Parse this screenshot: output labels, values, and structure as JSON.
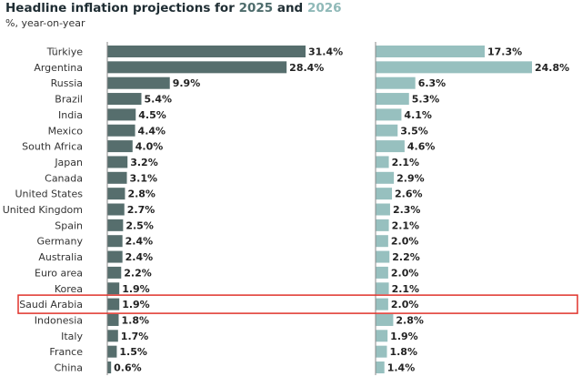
{
  "title": {
    "prefix": "Headline inflation projections for ",
    "year_a": "2025",
    "connector": " and ",
    "year_b": "2026"
  },
  "subtitle": "%, year-on-year",
  "colors": {
    "series_2025": "#566e6d",
    "series_2026": "#97c0bf",
    "highlight": "#e0322b",
    "axis": "#8a8a8a"
  },
  "chart_data": {
    "type": "bar",
    "orientation": "horizontal",
    "title": "Headline inflation projections for 2025 and 2026",
    "subtitle": "%, year-on-year",
    "categories": [
      "Türkiye",
      "Argentina",
      "Russia",
      "Brazil",
      "India",
      "Mexico",
      "South Africa",
      "Japan",
      "Canada",
      "United States",
      "United Kingdom",
      "Spain",
      "Germany",
      "Australia",
      "Euro area",
      "Korea",
      "Saudi Arabia",
      "Indonesia",
      "Italy",
      "France",
      "China"
    ],
    "series": [
      {
        "name": "2025",
        "values": [
          31.4,
          28.4,
          9.9,
          5.4,
          4.5,
          4.4,
          4.0,
          3.2,
          3.1,
          2.8,
          2.7,
          2.5,
          2.4,
          2.4,
          2.2,
          1.9,
          1.9,
          1.8,
          1.7,
          1.5,
          0.6
        ],
        "labels": [
          "31.4%",
          "28.4%",
          "9.9%",
          "5.4%",
          "4.5%",
          "4.4%",
          "4.0%",
          "3.2%",
          "3.1%",
          "2.8%",
          "2.7%",
          "2.5%",
          "2.4%",
          "2.4%",
          "2.2%",
          "1.9%",
          "1.9%",
          "1.8%",
          "1.7%",
          "1.5%",
          "0.6%"
        ]
      },
      {
        "name": "2026",
        "values": [
          17.3,
          24.8,
          6.3,
          5.3,
          4.1,
          3.5,
          4.6,
          2.1,
          2.9,
          2.6,
          2.3,
          2.1,
          2.0,
          2.2,
          2.0,
          2.1,
          2.0,
          2.8,
          1.9,
          1.8,
          1.4
        ],
        "labels": [
          "17.3%",
          "24.8%",
          "6.3%",
          "5.3%",
          "4.1%",
          "3.5%",
          "4.6%",
          "2.1%",
          "2.9%",
          "2.6%",
          "2.3%",
          "2.1%",
          "2.0%",
          "2.2%",
          "2.0%",
          "2.1%",
          "2.0%",
          "2.8%",
          "1.9%",
          "1.8%",
          "1.4%"
        ]
      }
    ],
    "highlighted_category": "Saudi Arabia",
    "xlim_2025": [
      0,
      31.4
    ],
    "xlim_2026": [
      0,
      24.8
    ],
    "grid": false,
    "legend": "none"
  }
}
